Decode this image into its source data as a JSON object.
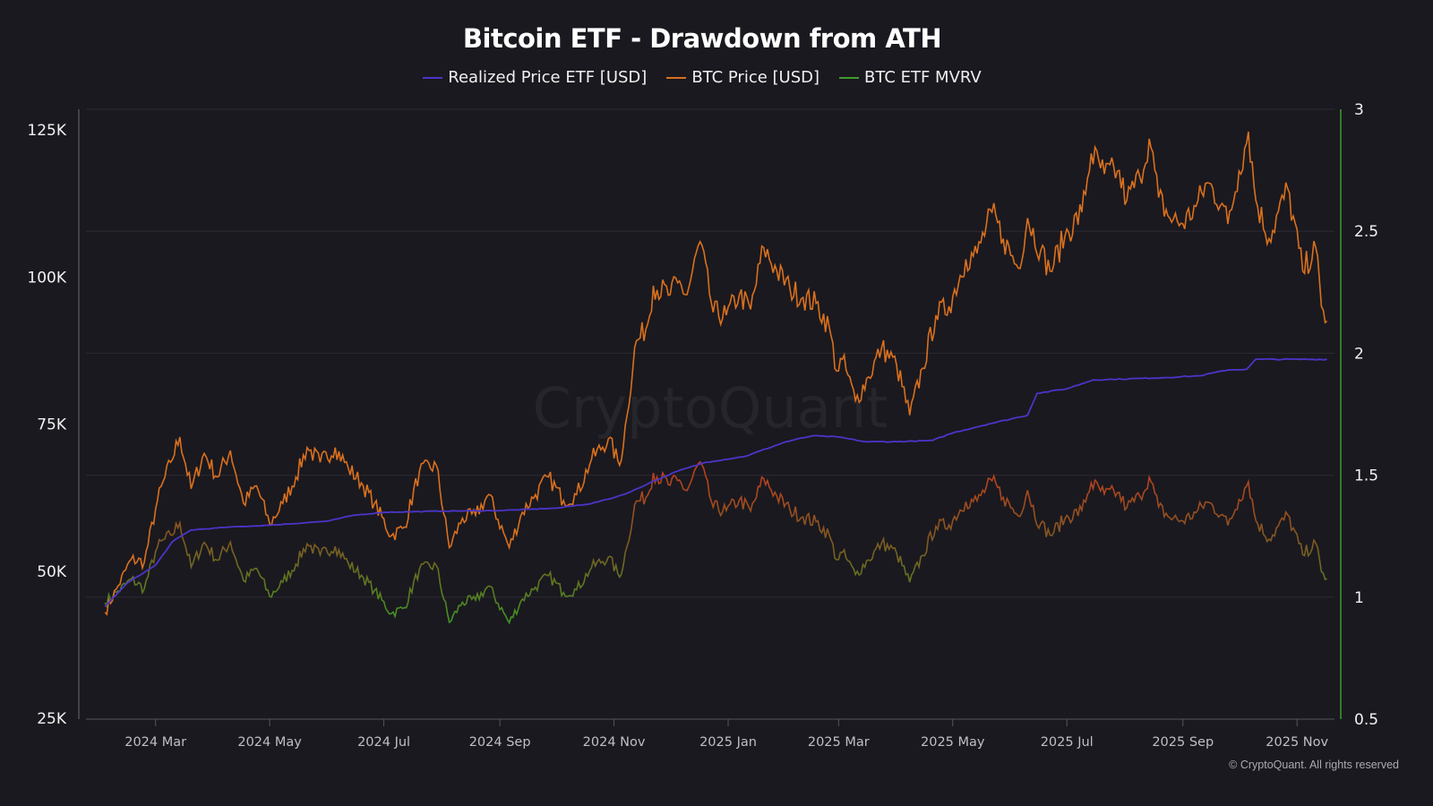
{
  "chart_data": {
    "type": "line",
    "title": "Bitcoin ETF - Drawdown from ATH",
    "watermark": "CryptoQuant",
    "credit": "© CryptoQuant. All rights reserved",
    "legend_position": "top",
    "grid": {
      "horizontal": true,
      "vertical": false
    },
    "colors": {
      "realized": "#4b35c9",
      "price": "#d9701e",
      "mvrv": "#3f9a2a",
      "right_axis": "#3f9a2a",
      "background": "#1a191f"
    },
    "x_ticks": [
      "2024 Mar",
      "2024 May",
      "2024 Jul",
      "2024 Sep",
      "2024 Nov",
      "2025 Jan",
      "2025 Mar",
      "2025 May",
      "2025 Jul",
      "2025 Sep",
      "2025 Nov"
    ],
    "x_tick_dates": [
      "2024-03-01",
      "2024-05-01",
      "2024-07-01",
      "2024-09-01",
      "2024-11-01",
      "2025-01-01",
      "2025-03-01",
      "2025-05-01",
      "2025-07-01",
      "2025-09-01",
      "2025-11-01"
    ],
    "x_range": [
      "2024-01-20",
      "2025-11-21"
    ],
    "y_left": {
      "ticks": [
        "25K",
        "50K",
        "75K",
        "100K",
        "125K"
      ],
      "tick_values": [
        25000,
        50000,
        75000,
        100000,
        125000
      ],
      "range": [
        25000,
        125000
      ]
    },
    "y_right": {
      "ticks": [
        "0.5",
        "1",
        "1.5",
        "2",
        "2.5",
        "3"
      ],
      "tick_values": [
        0.5,
        1,
        1.5,
        2,
        2.5,
        3
      ],
      "range": [
        0.5,
        3
      ]
    },
    "series": [
      {
        "name": "Realized Price ETF [USD]",
        "axis": "left",
        "x": [
          "2024-02-03",
          "2024-02-15",
          "2024-03-01",
          "2024-03-10",
          "2024-03-20",
          "2024-04-10",
          "2024-05-01",
          "2024-06-01",
          "2024-06-15",
          "2024-07-01",
          "2024-08-01",
          "2024-09-01",
          "2024-10-01",
          "2024-10-20",
          "2024-11-01",
          "2024-11-10",
          "2024-11-20",
          "2024-12-05",
          "2024-12-20",
          "2025-01-10",
          "2025-02-01",
          "2025-02-15",
          "2025-03-01",
          "2025-03-15",
          "2025-04-01",
          "2025-04-20",
          "2025-05-01",
          "2025-05-20",
          "2025-06-10",
          "2025-06-15",
          "2025-07-01",
          "2025-07-15",
          "2025-08-15",
          "2025-09-10",
          "2025-09-25",
          "2025-10-05",
          "2025-10-10",
          "2025-11-17"
        ],
        "values": [
          44000,
          48000,
          51000,
          55000,
          57000,
          57500,
          57800,
          58500,
          59500,
          60000,
          60200,
          60300,
          60700,
          61500,
          62500,
          63500,
          65000,
          67000,
          68500,
          69500,
          72000,
          73000,
          72800,
          72000,
          72000,
          72200,
          73500,
          75000,
          76500,
          80200,
          81000,
          82500,
          82800,
          83200,
          84200,
          84300,
          86000,
          86000
        ]
      },
      {
        "name": "BTC Price [USD]",
        "axis": "left",
        "x": [
          "2024-02-03",
          "2024-02-10",
          "2024-02-17",
          "2024-02-24",
          "2024-03-02",
          "2024-03-09",
          "2024-03-14",
          "2024-03-20",
          "2024-03-27",
          "2024-04-03",
          "2024-04-10",
          "2024-04-17",
          "2024-04-24",
          "2024-05-01",
          "2024-05-08",
          "2024-05-15",
          "2024-05-21",
          "2024-05-28",
          "2024-06-05",
          "2024-06-12",
          "2024-06-19",
          "2024-06-26",
          "2024-07-05",
          "2024-07-12",
          "2024-07-20",
          "2024-07-29",
          "2024-08-05",
          "2024-08-12",
          "2024-08-19",
          "2024-08-26",
          "2024-09-06",
          "2024-09-13",
          "2024-09-20",
          "2024-09-27",
          "2024-10-05",
          "2024-10-12",
          "2024-10-20",
          "2024-10-29",
          "2024-11-04",
          "2024-11-08",
          "2024-11-12",
          "2024-11-19",
          "2024-11-22",
          "2024-12-01",
          "2024-12-05",
          "2024-12-10",
          "2024-12-17",
          "2024-12-24",
          "2024-12-31",
          "2025-01-07",
          "2025-01-13",
          "2025-01-20",
          "2025-01-27",
          "2025-02-03",
          "2025-02-10",
          "2025-02-17",
          "2025-02-24",
          "2025-02-28",
          "2025-03-03",
          "2025-03-10",
          "2025-03-17",
          "2025-03-24",
          "2025-04-01",
          "2025-04-08",
          "2025-04-15",
          "2025-04-22",
          "2025-04-29",
          "2025-05-08",
          "2025-05-14",
          "2025-05-22",
          "2025-05-28",
          "2025-06-05",
          "2025-06-10",
          "2025-06-17",
          "2025-06-22",
          "2025-06-30",
          "2025-07-09",
          "2025-07-14",
          "2025-07-21",
          "2025-07-28",
          "2025-08-02",
          "2025-08-09",
          "2025-08-14",
          "2025-08-19",
          "2025-08-25",
          "2025-09-01",
          "2025-09-08",
          "2025-09-14",
          "2025-09-22",
          "2025-09-25",
          "2025-10-01",
          "2025-10-06",
          "2025-10-10",
          "2025-10-17",
          "2025-10-27",
          "2025-11-04",
          "2025-11-11",
          "2025-11-14",
          "2025-11-17"
        ],
        "values": [
          43000,
          47500,
          52000,
          51500,
          62000,
          68500,
          72800,
          64000,
          70000,
          66000,
          70500,
          61500,
          64500,
          58000,
          61500,
          66000,
          71000,
          68500,
          71000,
          67500,
          65000,
          61500,
          56000,
          57500,
          67000,
          68000,
          54000,
          59000,
          59500,
          63000,
          54000,
          60000,
          63000,
          66000,
          62000,
          63000,
          69000,
          72500,
          68000,
          76500,
          88000,
          92000,
          98500,
          97000,
          99000,
          97000,
          106000,
          94000,
          93500,
          97000,
          94500,
          105000,
          101000,
          98000,
          96500,
          95500,
          91500,
          84000,
          86000,
          79000,
          83000,
          88000,
          85000,
          76500,
          84500,
          93500,
          95000,
          103000,
          104000,
          111000,
          106500,
          101500,
          110000,
          104500,
          101000,
          107000,
          111000,
          121000,
          117500,
          118000,
          113000,
          117000,
          123500,
          113500,
          110000,
          109000,
          112000,
          116000,
          112500,
          109000,
          118000,
          124700,
          113000,
          106500,
          115000,
          101000,
          105000,
          95000,
          92500
        ]
      },
      {
        "name": "BTC ETF MVRV",
        "axis": "right",
        "derived_as": "BTC Price / Realized Price ETF"
      }
    ]
  }
}
